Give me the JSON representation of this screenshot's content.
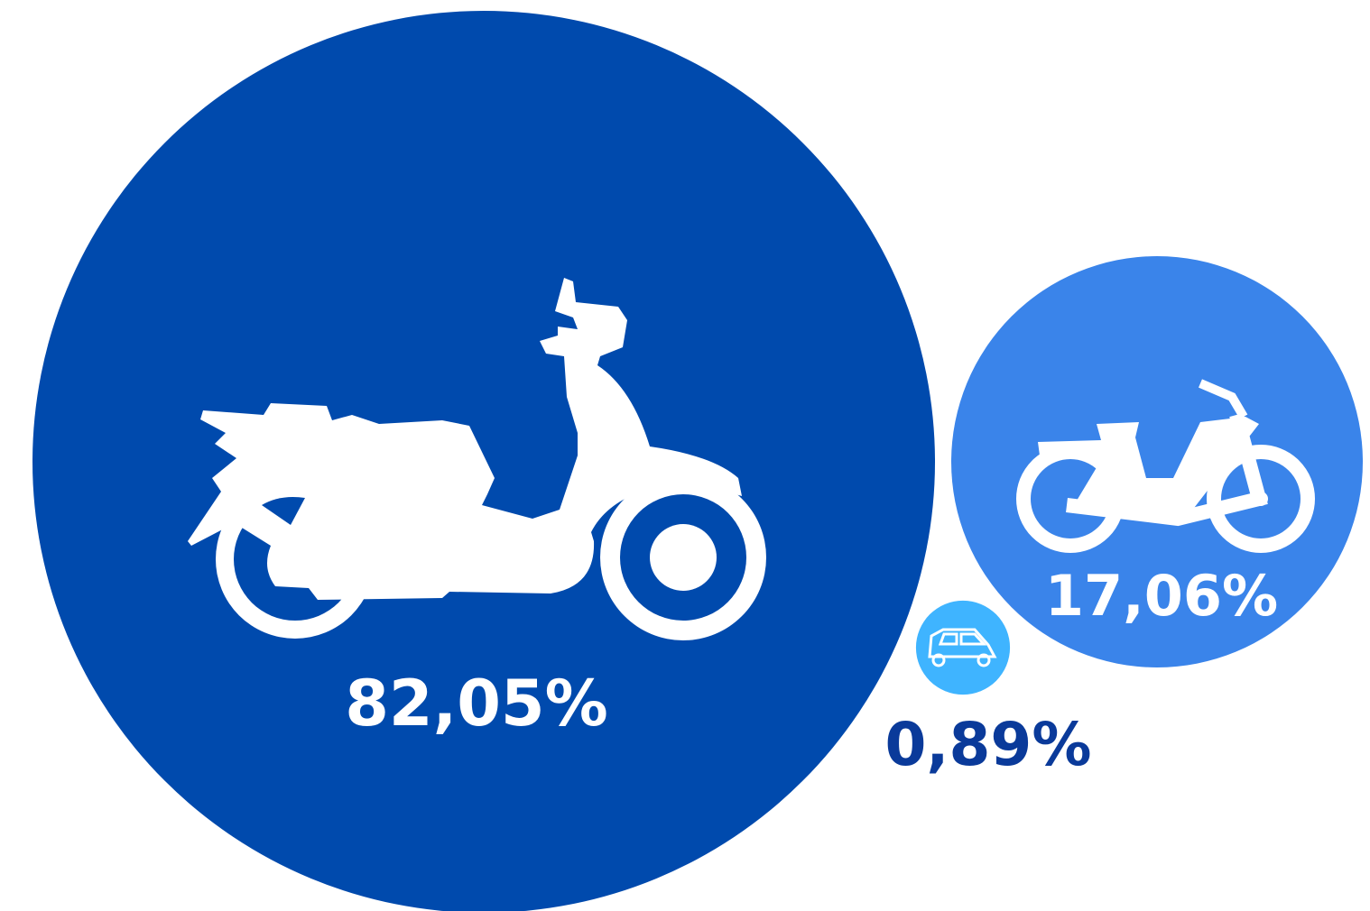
{
  "chart_data": {
    "type": "bubble",
    "values": [
      82.05,
      17.06,
      0.89
    ],
    "value_labels": [
      "82,05%",
      "17,06%",
      "0,89%"
    ],
    "colors": [
      "#004aad",
      "#3a84ea",
      "#3fb4ff"
    ],
    "label_colors": [
      "#ffffff",
      "#ffffff",
      "#0a3a9a"
    ]
  }
}
